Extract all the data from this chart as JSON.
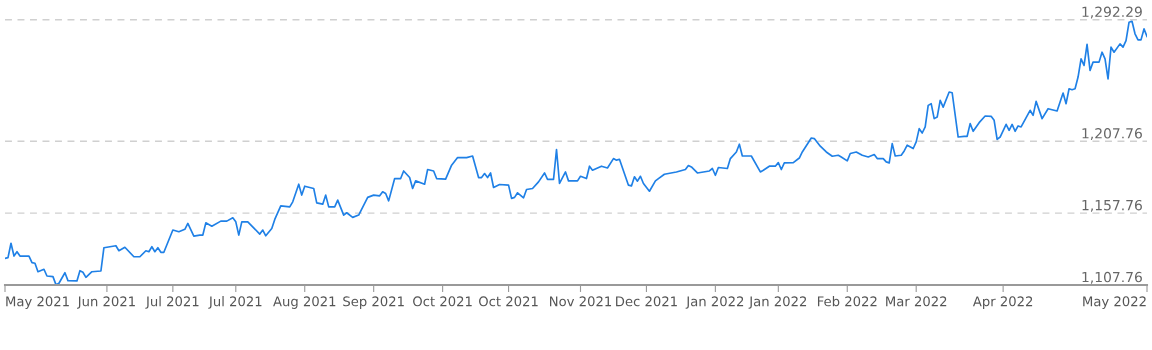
{
  "chart_data": {
    "type": "line",
    "x": [
      "2021-05-12",
      "2021-05-13",
      "2021-05-14",
      "2021-05-15",
      "2021-05-16",
      "2021-05-17",
      "2021-05-20",
      "2021-05-21",
      "2021-05-22",
      "2021-05-23",
      "2021-05-25",
      "2021-05-26",
      "2021-05-28",
      "2021-05-29",
      "2021-05-30",
      "2021-06-01",
      "2021-06-02",
      "2021-06-05",
      "2021-06-06",
      "2021-06-07",
      "2021-06-08",
      "2021-06-10",
      "2021-06-13",
      "2021-06-14",
      "2021-06-18",
      "2021-06-19",
      "2021-06-21",
      "2021-06-24",
      "2021-06-26",
      "2021-06-28",
      "2021-06-29",
      "2021-06-30",
      "2021-07-01",
      "2021-07-02",
      "2021-07-03",
      "2021-07-04",
      "2021-07-07",
      "2021-07-09",
      "2021-07-11",
      "2021-07-12",
      "2021-07-14",
      "2021-07-16",
      "2021-07-17",
      "2021-07-18",
      "2021-07-20",
      "2021-07-23",
      "2021-07-25",
      "2021-07-27",
      "2021-07-28",
      "2021-07-29",
      "2021-07-30",
      "2021-08-01",
      "2021-08-05",
      "2021-08-06",
      "2021-08-07",
      "2021-08-09",
      "2021-08-10",
      "2021-08-12",
      "2021-08-15",
      "2021-08-16",
      "2021-08-18",
      "2021-08-19",
      "2021-08-20",
      "2021-08-23",
      "2021-08-24",
      "2021-08-26",
      "2021-08-27",
      "2021-08-28",
      "2021-08-30",
      "2021-08-31",
      "2021-09-02",
      "2021-09-03",
      "2021-09-05",
      "2021-09-07",
      "2021-09-10",
      "2021-09-12",
      "2021-09-14",
      "2021-09-15",
      "2021-09-16",
      "2021-09-17",
      "2021-09-19",
      "2021-09-21",
      "2021-09-22",
      "2021-09-24",
      "2021-09-25",
      "2021-09-26",
      "2021-09-29",
      "2021-09-30",
      "2021-10-02",
      "2021-10-03",
      "2021-10-06",
      "2021-10-08",
      "2021-10-10",
      "2021-10-13",
      "2021-10-15",
      "2021-10-17",
      "2021-10-18",
      "2021-10-19",
      "2021-10-20",
      "2021-10-21",
      "2021-10-22",
      "2021-10-24",
      "2021-10-27",
      "2021-10-28",
      "2021-10-29",
      "2021-10-30",
      "2021-11-01",
      "2021-11-02",
      "2021-11-04",
      "2021-11-06",
      "2021-11-08",
      "2021-11-09",
      "2021-11-11",
      "2021-11-12",
      "2021-11-13",
      "2021-11-15",
      "2021-11-16",
      "2021-11-19",
      "2021-11-20",
      "2021-11-22",
      "2021-11-23",
      "2021-11-24",
      "2021-11-27",
      "2021-11-29",
      "2021-12-01",
      "2021-12-02",
      "2021-12-03",
      "2021-12-06",
      "2021-12-07",
      "2021-12-08",
      "2021-12-09",
      "2021-12-10",
      "2021-12-11",
      "2021-12-13",
      "2021-12-15",
      "2021-12-16",
      "2021-12-18",
      "2021-12-22",
      "2021-12-25",
      "2021-12-26",
      "2021-12-27",
      "2021-12-29",
      "2022-01-02",
      "2022-01-03",
      "2022-01-04",
      "2022-01-05",
      "2022-01-08",
      "2022-01-09",
      "2022-01-11",
      "2022-01-12",
      "2022-01-13",
      "2022-01-16",
      "2022-01-19",
      "2022-01-20",
      "2022-01-22",
      "2022-01-24",
      "2022-01-25",
      "2022-01-26",
      "2022-01-27",
      "2022-01-30",
      "2022-02-01",
      "2022-02-02",
      "2022-02-05",
      "2022-02-06",
      "2022-02-08",
      "2022-02-10",
      "2022-02-12",
      "2022-02-14",
      "2022-02-15",
      "2022-02-17",
      "2022-02-18",
      "2022-02-20",
      "2022-02-22",
      "2022-02-24",
      "2022-02-26",
      "2022-02-27",
      "2022-03-01",
      "2022-03-02",
      "2022-03-03",
      "2022-03-04",
      "2022-03-05",
      "2022-03-07",
      "2022-03-08",
      "2022-03-09",
      "2022-03-11",
      "2022-03-12",
      "2022-03-13",
      "2022-03-14",
      "2022-03-15",
      "2022-03-16",
      "2022-03-17",
      "2022-03-18",
      "2022-03-19",
      "2022-03-20",
      "2022-03-21",
      "2022-03-23",
      "2022-03-24",
      "2022-03-26",
      "2022-03-28",
      "2022-03-29",
      "2022-03-30",
      "2022-03-31",
      "2022-04-02",
      "2022-04-04",
      "2022-04-06",
      "2022-04-07",
      "2022-04-08",
      "2022-04-09",
      "2022-04-11",
      "2022-04-12",
      "2022-04-13",
      "2022-04-14",
      "2022-04-15",
      "2022-04-16",
      "2022-04-19",
      "2022-04-20",
      "2022-04-21",
      "2022-04-23",
      "2022-04-25",
      "2022-04-28",
      "2022-04-29",
      "2022-04-30",
      "2022-05-01",
      "2022-05-02",
      "2022-05-03",
      "2022-05-04",
      "2022-05-05",
      "2022-05-06",
      "2022-05-07",
      "2022-05-08",
      "2022-05-09",
      "2022-05-10",
      "2022-05-12",
      "2022-05-13",
      "2022-05-14",
      "2022-05-15",
      "2022-05-16",
      "2022-05-17",
      "2022-05-19",
      "2022-05-20",
      "2022-05-21",
      "2022-05-22",
      "2022-05-23",
      "2022-05-24",
      "2022-05-25",
      "2022-05-26",
      "2022-05-27",
      "2022-05-28"
    ],
    "series": [
      {
        "color": "#1f80e6",
        "values": [
          1126.3,
          1126.8,
          1136.8,
          1127.9,
          1130.9,
          1127.9,
          1127.9,
          1123.3,
          1122.9,
          1117.0,
          1118.7,
          1114.0,
          1113.6,
          1108.0,
          1109.0,
          1116.3,
          1110.8,
          1110.6,
          1117.7,
          1116.6,
          1113.1,
          1117.0,
          1117.5,
          1133.7,
          1135.1,
          1131.6,
          1134.0,
          1127.4,
          1127.4,
          1131.6,
          1130.9,
          1134.4,
          1130.9,
          1133.7,
          1130.5,
          1130.5,
          1146.0,
          1144.8,
          1146.5,
          1150.6,
          1141.8,
          1142.5,
          1142.5,
          1151.0,
          1148.7,
          1152.2,
          1152.2,
          1154.5,
          1151.7,
          1142.5,
          1151.7,
          1151.7,
          1143.2,
          1146.0,
          1142.0,
          1147.1,
          1153.4,
          1162.8,
          1162.1,
          1165.6,
          1177.9,
          1170.3,
          1176.5,
          1174.9,
          1164.9,
          1164.0,
          1170.3,
          1162.1,
          1162.1,
          1166.8,
          1156.4,
          1158.0,
          1154.8,
          1156.4,
          1168.7,
          1170.3,
          1169.8,
          1172.6,
          1171.4,
          1166.3,
          1181.8,
          1181.8,
          1187.1,
          1182.5,
          1174.9,
          1180.2,
          1177.9,
          1188.1,
          1187.1,
          1181.8,
          1181.4,
          1191.1,
          1196.4,
          1196.4,
          1197.5,
          1182.5,
          1182.5,
          1185.3,
          1182.5,
          1185.7,
          1175.6,
          1177.7,
          1177.2,
          1168.0,
          1168.7,
          1171.9,
          1168.4,
          1174.2,
          1174.9,
          1179.5,
          1185.7,
          1181.2,
          1181.2,
          1202.0,
          1178.4,
          1186.4,
          1180.2,
          1180.2,
          1183.4,
          1181.8,
          1190.4,
          1187.6,
          1190.4,
          1189.2,
          1195.7,
          1194.6,
          1195.2,
          1177.2,
          1176.7,
          1183.0,
          1180.0,
          1183.4,
          1178.4,
          1173.0,
          1180.2,
          1181.8,
          1184.8,
          1186.4,
          1188.1,
          1190.9,
          1189.9,
          1185.7,
          1187.1,
          1188.8,
          1184.1,
          1189.5,
          1188.8,
          1195.7,
          1200.3,
          1205.7,
          1197.5,
          1197.5,
          1186.4,
          1187.6,
          1190.4,
          1190.4,
          1192.9,
          1188.1,
          1192.7,
          1192.9,
          1196.1,
          1200.3,
          1210.0,
          1209.6,
          1204.3,
          1200.3,
          1197.3,
          1198.0,
          1196.8,
          1194.1,
          1199.2,
          1200.3,
          1198.0,
          1196.8,
          1198.5,
          1195.7,
          1195.7,
          1193.4,
          1192.7,
          1206.1,
          1197.5,
          1198.0,
          1201.0,
          1205.0,
          1202.7,
          1207.3,
          1216.5,
          1213.5,
          1217.7,
          1232.7,
          1233.9,
          1223.5,
          1224.6,
          1236.2,
          1231.5,
          1242.0,
          1241.5,
          1210.7,
          1211.2,
          1211.2,
          1220.0,
          1214.7,
          1220.7,
          1225.3,
          1225.1,
          1222.3,
          1209.1,
          1210.7,
          1219.5,
          1215.4,
          1219.5,
          1214.7,
          1218.4,
          1217.7,
          1229.3,
          1225.8,
          1235.5,
          1223.5,
          1230.4,
          1228.8,
          1235.0,
          1241.3,
          1233.9,
          1244.3,
          1243.6,
          1244.3,
          1252.4,
          1265.1,
          1260.5,
          1275.1,
          1257.0,
          1262.8,
          1262.8,
          1269.7,
          1265.1,
          1251.2,
          1273.2,
          1269.7,
          1275.5,
          1273.2,
          1277.8,
          1290.5,
          1291.2,
          1282.5,
          1278.3,
          1278.3,
          1285.9,
          1280.6
        ]
      }
    ],
    "xlim": [
      "2021-05-12",
      "2022-05-28"
    ],
    "xticks": [
      {
        "value": "2021-05-12",
        "label": "May 2021"
      },
      {
        "value": "2021-06-15",
        "label": "Jun 2021"
      },
      {
        "value": "2021-07-07",
        "label": "Jul 2021"
      },
      {
        "value": "2021-07-28",
        "label": "Jul 2021"
      },
      {
        "value": "2021-08-20",
        "label": "Aug 2021"
      },
      {
        "value": "2021-09-12",
        "label": "Sep 2021"
      },
      {
        "value": "2021-10-05",
        "label": "Oct 2021"
      },
      {
        "value": "2021-10-27",
        "label": "Oct 2021"
      },
      {
        "value": "2021-11-20",
        "label": "Nov 2021"
      },
      {
        "value": "2021-12-12",
        "label": "Dec 2021"
      },
      {
        "value": "2022-01-04",
        "label": "Jan 2022"
      },
      {
        "value": "2022-01-25",
        "label": "Jan 2022"
      },
      {
        "value": "2022-02-17",
        "label": "Feb 2022"
      },
      {
        "value": "2022-03-12",
        "label": "Mar 2022"
      },
      {
        "value": "2022-04-10",
        "label": "Apr 2022"
      },
      {
        "value": "2022-05-28",
        "label": "May 2022"
      }
    ],
    "ylim": [
      1107.76,
      1293.5
    ],
    "yticks": [
      {
        "value": 1107.76,
        "label": "1,107.76"
      },
      {
        "value": 1157.76,
        "label": "1,157.76"
      },
      {
        "value": 1207.76,
        "label": "1,207.76"
      },
      {
        "value": 1292.29,
        "label": "1,292.29"
      }
    ],
    "grid": "y"
  }
}
